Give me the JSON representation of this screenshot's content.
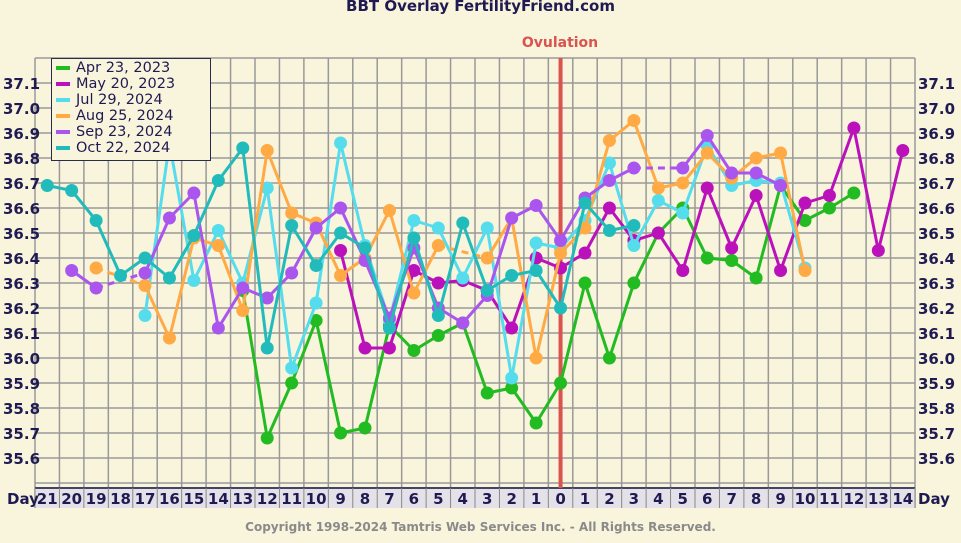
{
  "chart_data": {
    "type": "line",
    "title": "BBT Overlay FertilityFriend.com",
    "annotation": "Ovulation",
    "footer": "Copyright 1998-2024 Tamtris Web Services Inc. - All Rights Reserved.",
    "xlabel": "Day",
    "x": [
      -21,
      -20,
      -19,
      -18,
      -17,
      -16,
      -15,
      -14,
      -13,
      -12,
      -11,
      -10,
      -9,
      -8,
      -7,
      -6,
      -5,
      -4,
      -3,
      -2,
      -1,
      0,
      1,
      2,
      3,
      4,
      5,
      6,
      7,
      8,
      9,
      10,
      11,
      12,
      13,
      14
    ],
    "x_tick_labels": [
      "21",
      "20",
      "19",
      "18",
      "17",
      "16",
      "15",
      "14",
      "13",
      "12",
      "11",
      "10",
      "9",
      "8",
      "7",
      "6",
      "5",
      "4",
      "3",
      "2",
      "1",
      "0",
      "1",
      "2",
      "3",
      "4",
      "5",
      "6",
      "7",
      "8",
      "9",
      "10",
      "11",
      "12",
      "13",
      "14"
    ],
    "y_ticks": [
      "37.1",
      "37.0",
      "36.9",
      "36.8",
      "36.7",
      "36.6",
      "36.5",
      "36.4",
      "36.3",
      "36.2",
      "36.1",
      "36.0",
      "35.9",
      "35.8",
      "35.7",
      "35.6"
    ],
    "ylim": [
      35.48,
      37.2
    ],
    "grid": true,
    "legend_position": "top-left",
    "ovulation_day": 0,
    "ovulation_color": "#d9534f",
    "series": [
      {
        "name": "Apr 23, 2023",
        "color": "#22bb22",
        "values": [
          null,
          null,
          null,
          null,
          null,
          null,
          null,
          null,
          36.27,
          35.68,
          35.9,
          36.15,
          35.7,
          35.72,
          36.13,
          36.03,
          36.09,
          36.14,
          35.86,
          35.88,
          35.74,
          35.9,
          36.3,
          36.0,
          36.3,
          36.5,
          36.6,
          36.4,
          36.39,
          36.32,
          36.69,
          36.55,
          36.6,
          36.66,
          null,
          null
        ]
      },
      {
        "name": "May 20, 2023",
        "color": "#bb11bb",
        "values": [
          null,
          null,
          null,
          null,
          null,
          null,
          null,
          null,
          null,
          null,
          null,
          null,
          36.43,
          36.04,
          36.04,
          36.35,
          36.3,
          36.31,
          36.27,
          36.12,
          36.4,
          36.36,
          36.42,
          36.6,
          36.47,
          36.5,
          36.35,
          36.68,
          36.44,
          36.65,
          36.35,
          36.62,
          36.65,
          36.92,
          36.43,
          36.83
        ]
      },
      {
        "name": "Jul 29, 2024",
        "color": "#55ddee",
        "values": [
          null,
          null,
          null,
          null,
          36.17,
          36.86,
          36.31,
          36.51,
          36.3,
          36.68,
          35.96,
          36.22,
          36.86,
          36.45,
          36.15,
          36.55,
          36.52,
          36.32,
          36.52,
          35.92,
          36.46,
          36.44,
          36.55,
          36.78,
          36.45,
          36.63,
          36.58,
          36.85,
          36.69,
          36.71,
          36.7,
          36.36,
          null,
          null,
          null,
          null
        ]
      },
      {
        "name": "Aug 25, 2024",
        "color": "#ffaa44",
        "values": [
          null,
          null,
          36.36,
          null,
          36.29,
          36.08,
          36.48,
          36.45,
          36.19,
          36.83,
          36.58,
          36.54,
          36.33,
          36.4,
          36.59,
          36.26,
          36.45,
          null,
          36.4,
          36.56,
          36.0,
          36.42,
          36.52,
          36.87,
          36.95,
          36.68,
          36.7,
          36.82,
          36.72,
          36.8,
          36.82,
          36.35,
          null,
          null,
          null,
          null
        ]
      },
      {
        "name": "Sep 23, 2024",
        "color": "#aa55ee",
        "values": [
          null,
          36.35,
          36.28,
          null,
          36.34,
          36.56,
          36.66,
          36.12,
          36.28,
          36.24,
          36.34,
          36.52,
          36.6,
          36.39,
          36.16,
          36.44,
          36.2,
          36.14,
          36.25,
          36.56,
          36.61,
          36.47,
          36.64,
          36.71,
          36.76,
          null,
          36.76,
          36.89,
          36.74,
          36.74,
          36.69,
          null,
          null,
          null,
          null,
          null
        ]
      },
      {
        "name": "Oct 22, 2024",
        "color": "#22bbbb",
        "values": [
          36.69,
          36.67,
          36.55,
          36.33,
          36.4,
          36.32,
          36.49,
          36.71,
          36.84,
          36.04,
          36.53,
          36.37,
          36.5,
          36.44,
          36.12,
          36.48,
          36.17,
          36.54,
          36.27,
          36.33,
          36.35,
          36.2,
          36.62,
          36.51,
          36.53,
          null,
          null,
          null,
          null,
          null,
          null,
          null,
          null,
          null,
          null,
          null
        ]
      }
    ],
    "colors": {
      "background": "#f9f4dc",
      "grid": "#999999",
      "text": "#1f1b52",
      "day_row": "#e4e2e8"
    }
  }
}
